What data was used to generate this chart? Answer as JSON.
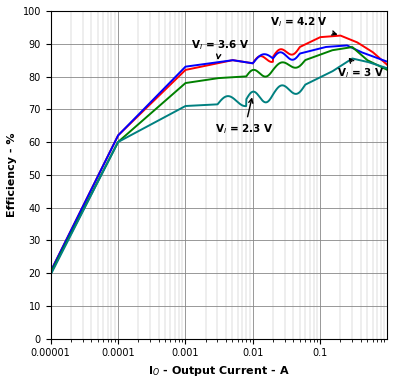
{
  "title": "",
  "xlabel": "I$_O$ - Output Current - A",
  "ylabel": "Efficiency - %",
  "xlim": [
    1e-05,
    1.0
  ],
  "ylim": [
    0,
    100
  ],
  "yticks": [
    0,
    10,
    20,
    30,
    40,
    50,
    60,
    70,
    80,
    90,
    100
  ],
  "xticks": [
    1e-05,
    0.0001,
    0.001,
    0.01,
    0.1
  ],
  "xtick_labels": [
    "0.00001",
    "0.0001",
    "0.001",
    "0.01",
    "0.1"
  ],
  "curves": {
    "VI_42": {
      "label": "V$_I$ = 4.2 V",
      "color": "#ff0000"
    },
    "VI_36": {
      "label": "V$_I$ = 3.6 V",
      "color": "#0000ff"
    },
    "VI_30": {
      "label": "V$_I$ = 3 V",
      "color": "#008000"
    },
    "VI_23": {
      "label": "V$_I$ = 2.3 V",
      "color": "#008080"
    }
  },
  "background_color": "#ffffff",
  "grid_major_color": "#aaaaaa",
  "grid_minor_color": "#cccccc"
}
